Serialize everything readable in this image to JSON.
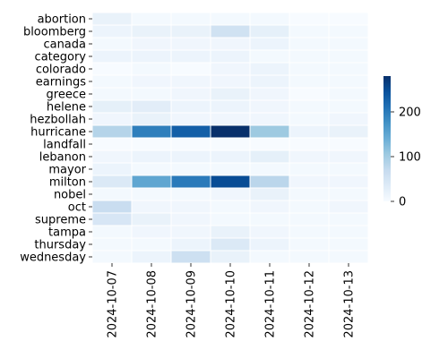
{
  "chart_data": {
    "type": "heatmap",
    "title": "",
    "xlabel": "",
    "ylabel": "",
    "rows": [
      "abortion",
      "bloomberg",
      "canada",
      "category",
      "colorado",
      "earnings",
      "greece",
      "helene",
      "hezbollah",
      "hurricane",
      "landfall",
      "lebanon",
      "mayor",
      "milton",
      "nobel",
      "oct",
      "supreme",
      "tampa",
      "thursday",
      "wednesday"
    ],
    "columns": [
      "2024-10-07",
      "2024-10-08",
      "2024-10-09",
      "2024-10-10",
      "2024-10-11",
      "2024-10-12",
      "2024-10-13"
    ],
    "values": [
      [
        20,
        5,
        5,
        5,
        5,
        0,
        0
      ],
      [
        15,
        20,
        20,
        55,
        25,
        5,
        5
      ],
      [
        5,
        10,
        10,
        10,
        15,
        5,
        5
      ],
      [
        15,
        15,
        15,
        15,
        5,
        5,
        5
      ],
      [
        0,
        5,
        0,
        10,
        15,
        5,
        5
      ],
      [
        5,
        10,
        10,
        10,
        15,
        5,
        5
      ],
      [
        5,
        5,
        10,
        20,
        10,
        0,
        5
      ],
      [
        25,
        30,
        15,
        15,
        10,
        5,
        5
      ],
      [
        10,
        20,
        10,
        10,
        10,
        5,
        10
      ],
      [
        85,
        195,
        230,
        280,
        105,
        15,
        20
      ],
      [
        0,
        0,
        0,
        0,
        0,
        0,
        0
      ],
      [
        10,
        15,
        15,
        15,
        25,
        10,
        10
      ],
      [
        15,
        5,
        5,
        5,
        5,
        5,
        5
      ],
      [
        40,
        150,
        200,
        250,
        80,
        10,
        10
      ],
      [
        5,
        5,
        5,
        10,
        20,
        5,
        5
      ],
      [
        65,
        10,
        10,
        5,
        10,
        5,
        10
      ],
      [
        45,
        20,
        10,
        5,
        5,
        5,
        5
      ],
      [
        5,
        10,
        10,
        20,
        10,
        5,
        5
      ],
      [
        5,
        5,
        15,
        40,
        15,
        5,
        5
      ],
      [
        5,
        15,
        60,
        20,
        5,
        5,
        5
      ]
    ],
    "colorbar": {
      "min": 0,
      "max": 280,
      "ticks": [
        0,
        100,
        200
      ]
    },
    "colormap": "Blues",
    "grid": true,
    "legend": "right"
  }
}
